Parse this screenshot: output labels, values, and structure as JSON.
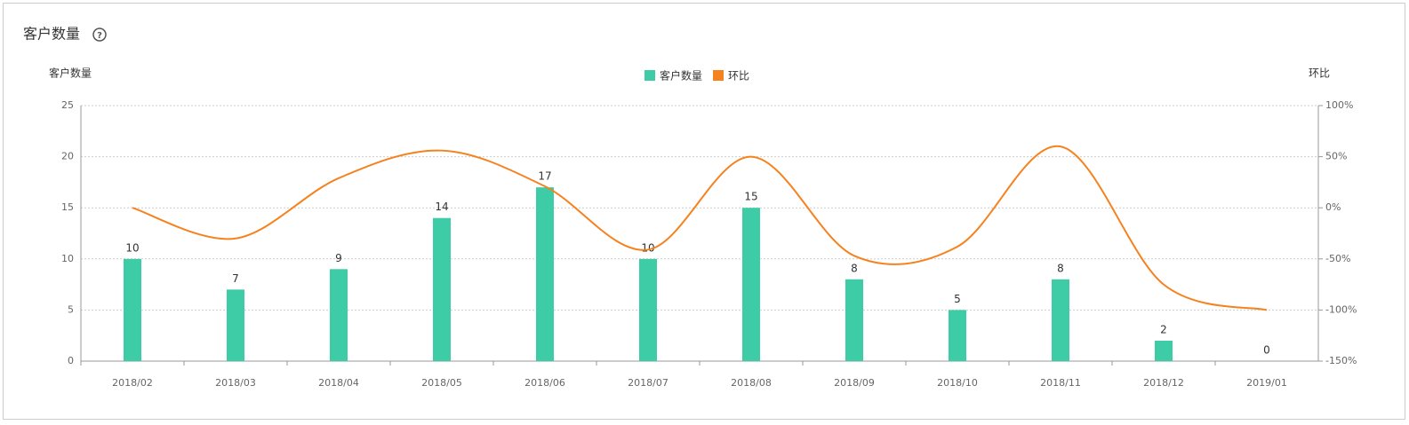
{
  "chart_data": {
    "type": "bar",
    "title": "客户数量",
    "y_label": "客户数量",
    "y2_label": "环比",
    "categories": [
      "2018/02",
      "2018/03",
      "2018/04",
      "2018/05",
      "2018/06",
      "2018/07",
      "2018/08",
      "2018/09",
      "2018/10",
      "2018/11",
      "2018/12",
      "2019/01"
    ],
    "series": [
      {
        "name": "客户数量",
        "type": "bar",
        "color": "#3ecca6",
        "values": [
          10,
          7,
          9,
          14,
          17,
          10,
          15,
          8,
          5,
          8,
          2,
          0
        ]
      },
      {
        "name": "环比",
        "type": "line",
        "axis": "y2",
        "color": "#f5821f",
        "values": [
          0,
          -30,
          29,
          56,
          21,
          -41,
          50,
          -47,
          -38,
          60,
          -75,
          -100
        ]
      }
    ],
    "ylim": [
      0,
      25
    ],
    "yticks": [
      0,
      5,
      10,
      15,
      20,
      25
    ],
    "y2lim": [
      -150,
      100
    ],
    "y2ticks": [
      {
        "value": -150,
        "label": "-150%"
      },
      {
        "value": -100,
        "label": "-100%"
      },
      {
        "value": -50,
        "label": "-50%"
      },
      {
        "value": 0,
        "label": "0%"
      },
      {
        "value": 50,
        "label": "50%"
      },
      {
        "value": 100,
        "label": "100%"
      }
    ],
    "grid": true,
    "legend": "top"
  }
}
